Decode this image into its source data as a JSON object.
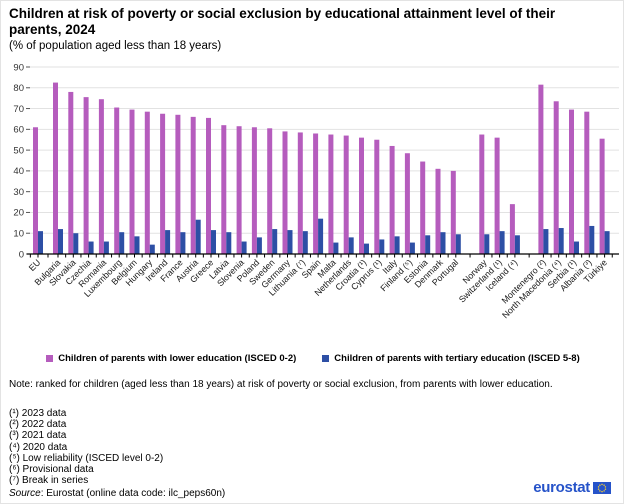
{
  "title": "Children at risk of poverty or social exclusion by educational attainment level of their parents, 2024",
  "subtitle": "(% of population aged less than 18 years)",
  "chart_data": {
    "type": "bar",
    "categories": [
      "EU",
      "Bulgaria",
      "Slovakia",
      "Czechia",
      "Romania",
      "Luxembourg",
      "Belgium",
      "Hungary",
      "Ireland",
      "France",
      "Austria",
      "Greece",
      "Latvia",
      "Slovenia",
      "Poland",
      "Sweden",
      "Germany",
      "Lithuania (⁷)",
      "Spain",
      "Malta",
      "Netherlands",
      "Croatia (¹)",
      "Cyprus (¹)",
      "Italy",
      "Finland (⁵)",
      "Estonia",
      "Denmark",
      "Portugal",
      "Norway",
      "Switzerland (¹)",
      "Iceland (⁴)",
      "Montenegro (²)",
      "North Macedonia (⁴)",
      "Serbia (¹)",
      "Albania (³)",
      "Türkiye"
    ],
    "series": [
      {
        "name": "Children of parents with lower education (ISCED 0-2)",
        "color": "#b55cbd",
        "values": [
          61,
          82.5,
          78,
          75.5,
          74.5,
          70.5,
          69.5,
          68.5,
          67.5,
          67,
          66,
          65.5,
          62,
          61.5,
          61,
          60.5,
          59,
          58.5,
          58,
          57.5,
          57,
          56,
          55,
          52,
          48.5,
          44.5,
          41,
          40,
          57.5,
          56,
          24,
          81.5,
          73.5,
          69.5,
          68.5,
          55.5
        ]
      },
      {
        "name": "Children of parents with tertiary education (ISCED 5-8)",
        "color": "#2d4fa5",
        "values": [
          11,
          12,
          10,
          6,
          6,
          10.5,
          8.5,
          4.5,
          11.5,
          10.5,
          16.5,
          11.5,
          10.5,
          6,
          8,
          12,
          11.5,
          11,
          17,
          5.5,
          8,
          5,
          7,
          8.5,
          5.5,
          9,
          10.5,
          9.5,
          9.5,
          11,
          9,
          12,
          12.5,
          6,
          13.5,
          11
        ]
      }
    ],
    "ylim": [
      0,
      90
    ],
    "ytick_step": 10,
    "grid": true,
    "legend_position": "bottom",
    "group_breaks_after": [
      27,
      30
    ],
    "xlabel": "",
    "ylabel": ""
  },
  "note": "Note: ranked for children (aged less than 18 years) at risk of poverty or social exclusion, from parents with lower education.",
  "footnotes": [
    "(¹) 2023 data",
    "(²) 2022 data",
    "(³) 2021 data",
    "(⁴) 2020 data",
    "(⁵) Low reliability (ISCED level 0-2)",
    "(⁶) Provisional data",
    "(⁷) Break in series"
  ],
  "source": {
    "label": "Source",
    "rest": ": Eurostat (online data code: ilc_peps60n)"
  },
  "logo": {
    "text": "eurostat",
    "color": "#2653c9",
    "flag_bg": "#2653c9",
    "star_color": "#f8d12e"
  },
  "style_colors": {
    "gridline": "#e2e2e2",
    "axis": "#000000",
    "tick_text": "#333333"
  }
}
